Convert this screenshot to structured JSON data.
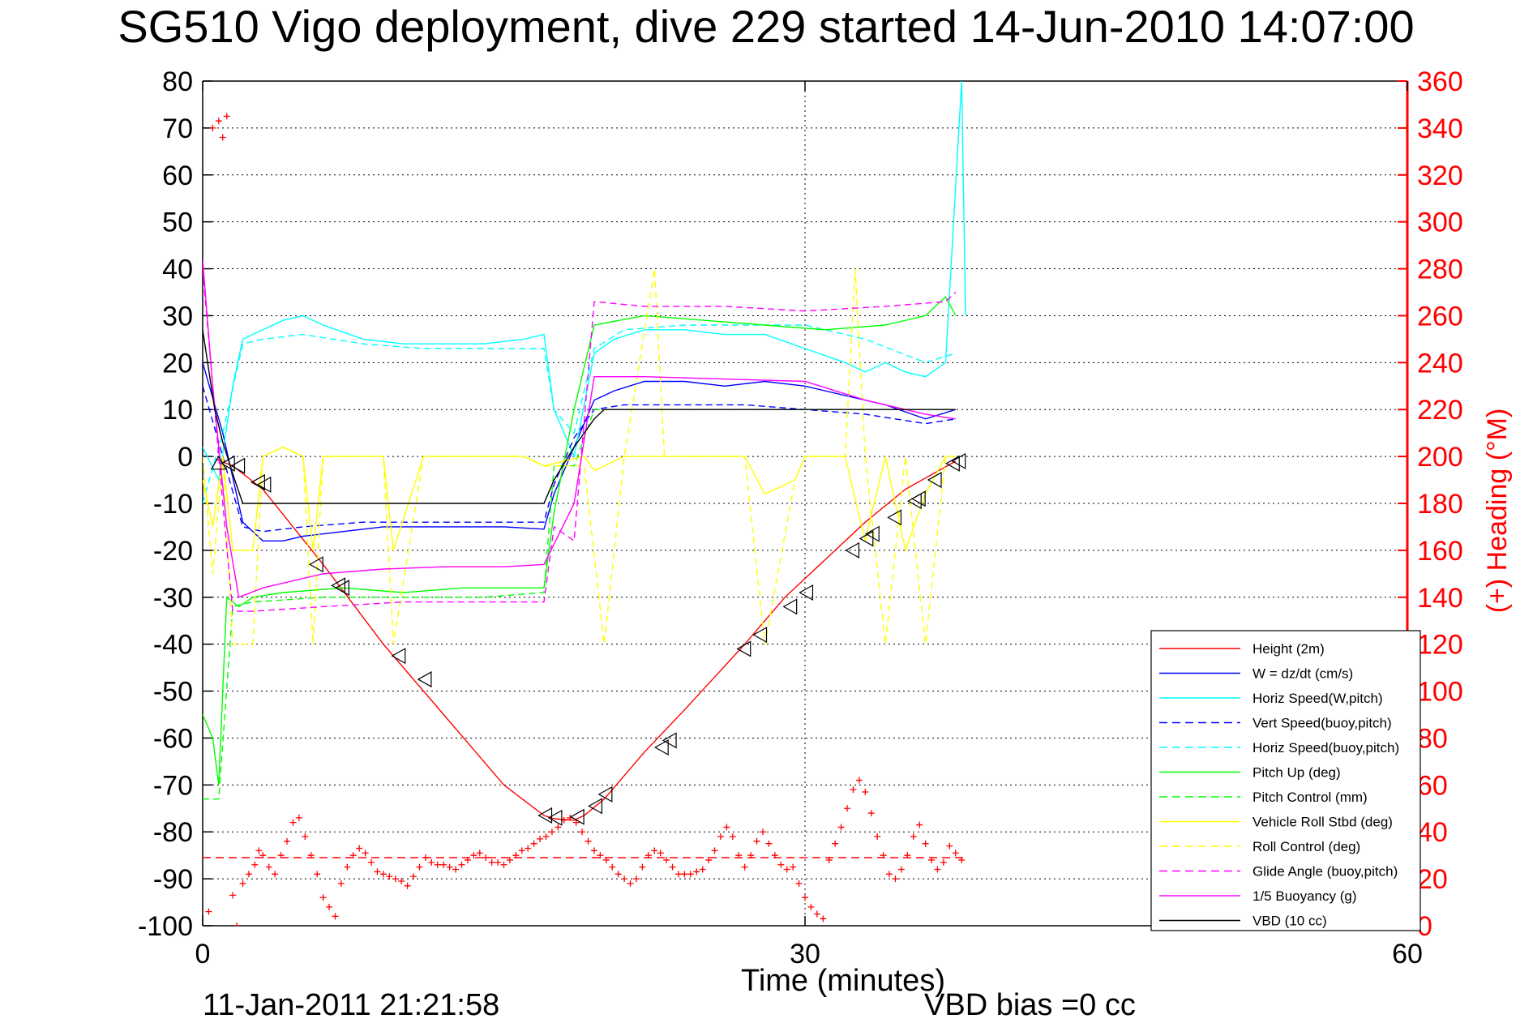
{
  "chart_data": {
    "type": "line",
    "title": "SG510 Vigo deployment, dive 229 started 14-Jun-2010 14:07:00",
    "xlabel": "Time (minutes)",
    "ylabel": "",
    "y2label": "(+) Heading (°M)",
    "xlim": [
      0,
      60
    ],
    "ylim": [
      -100,
      80
    ],
    "y2lim": [
      0,
      360
    ],
    "x_ticks": [
      "0",
      "30",
      "60"
    ],
    "y_ticks": [
      "80",
      "70",
      "60",
      "50",
      "40",
      "30",
      "20",
      "10",
      "0",
      "-10",
      "-20",
      "-30",
      "-40",
      "-50",
      "-60",
      "-70",
      "-80",
      "-90",
      "-100"
    ],
    "y2_ticks": [
      "360",
      "340",
      "320",
      "300",
      "280",
      "260",
      "240",
      "220",
      "200",
      "180",
      "160",
      "140",
      "120",
      "100",
      "80",
      "60",
      "40",
      "20",
      "0"
    ],
    "grid": "dotted at x=30",
    "legend_position": "bottom-right",
    "colors": {
      "height": "#ff0000",
      "w": "#0000ff",
      "horiz_speed_w": "#00ffff",
      "vert_speed_buoy": "#0000ff",
      "horiz_speed_buoy": "#00ffff",
      "pitch_up": "#00ff00",
      "pitch_control": "#00ff00",
      "roll": "#ffff00",
      "roll_control": "#ffff00",
      "glide_angle": "#ff00ff",
      "buoyancy": "#ff00ff",
      "vbd": "#000000",
      "heading": "#ff0000"
    },
    "series": [
      {
        "name": "Height (2m)",
        "key": "height",
        "style": "solid",
        "x": [
          0.6,
          1.5,
          3,
          6,
          9,
          12,
          15,
          17,
          17.5,
          18.5,
          19,
          20,
          22,
          24,
          27,
          29,
          31,
          33,
          35,
          37.5
        ],
        "y": [
          -0.5,
          -2,
          -7,
          -23,
          -40,
          -55,
          -70,
          -76.5,
          -77.2,
          -77.5,
          -76.5,
          -73,
          -63,
          -54,
          -40,
          -30,
          -22,
          -14,
          -7,
          -1
        ]
      },
      {
        "name": "W = dz/dt (cm/s)",
        "key": "w",
        "style": "solid",
        "x": [
          0,
          1,
          2,
          3,
          4,
          5,
          7,
          9,
          11,
          13,
          15,
          17,
          17.5,
          18.5,
          19.5,
          20.5,
          22,
          24,
          26,
          28,
          30,
          32,
          34,
          36,
          37.5
        ],
        "y": [
          20,
          5,
          -14,
          -18,
          -18,
          -17,
          -16,
          -15,
          -15,
          -15,
          -15,
          -15.5,
          -8,
          2,
          12,
          14,
          16,
          16,
          15,
          16,
          15,
          13,
          11,
          8,
          10
        ]
      },
      {
        "name": "Horiz Speed(W,pitch)",
        "key": "horiz_speed_w",
        "style": "solid",
        "x": [
          0,
          0.8,
          1.5,
          2,
          3,
          4,
          5,
          6,
          8,
          10,
          12,
          14,
          16,
          17,
          17.5,
          18.5,
          19.5,
          20.5,
          22,
          24,
          26,
          28,
          30,
          32,
          33,
          34,
          35,
          36,
          37,
          37.4,
          37.8,
          38
        ],
        "y": [
          2,
          -5,
          15,
          25,
          27,
          29,
          30,
          28,
          25,
          24,
          24,
          24,
          25,
          26,
          10,
          0,
          22,
          25,
          27,
          27,
          26,
          26,
          23,
          20,
          18,
          20,
          18,
          17,
          20,
          50,
          80,
          30
        ]
      },
      {
        "name": "Vert Speed(buoy,pitch)",
        "key": "vert_speed_buoy",
        "style": "dashed",
        "x": [
          0,
          1,
          2,
          3,
          5,
          8,
          11,
          14,
          17,
          17.5,
          18.5,
          19.5,
          21,
          24,
          27,
          30,
          33,
          36,
          37.5
        ],
        "y": [
          15,
          0,
          -15,
          -16,
          -15,
          -14,
          -14,
          -14,
          -14,
          -6,
          4,
          10,
          11,
          11,
          11,
          10,
          9,
          7,
          8
        ]
      },
      {
        "name": "Horiz Speed(buoy,pitch)",
        "key": "horiz_speed_buoy",
        "style": "dashed",
        "x": [
          0,
          1,
          2,
          3,
          5,
          8,
          11,
          14,
          17,
          17.5,
          18.5,
          19.5,
          21,
          24,
          27,
          30,
          33,
          36,
          37.5
        ],
        "y": [
          -10,
          5,
          24,
          25,
          26,
          24,
          23,
          23,
          23,
          10,
          5,
          23,
          27,
          28,
          28,
          28,
          25,
          20,
          22
        ]
      },
      {
        "name": "Pitch Up (deg)",
        "key": "pitch_up",
        "style": "solid",
        "x": [
          0,
          0.5,
          0.8,
          1.2,
          1.8,
          2.5,
          4,
          7,
          10,
          13,
          16,
          17,
          17.5,
          18.5,
          19.5,
          22,
          25,
          28,
          31,
          34,
          36,
          37,
          37.5
        ],
        "y": [
          -55,
          -60,
          -70,
          -30,
          -32,
          -30,
          -29,
          -28,
          -29,
          -28,
          -28,
          -28,
          -12,
          10,
          28,
          30,
          29,
          28,
          27,
          28,
          30,
          34,
          30
        ]
      },
      {
        "name": "Pitch Control (mm)",
        "key": "pitch_control",
        "style": "dashed",
        "x": [
          0,
          0.8,
          1.5,
          2.5,
          6,
          10,
          14,
          17,
          17.5,
          18.5,
          19.5,
          22,
          26,
          30,
          34,
          37,
          37.5
        ],
        "y": [
          -73,
          -73,
          -32,
          -31,
          -30,
          -30,
          -30,
          -29,
          -2,
          -2,
          10,
          10,
          10,
          10,
          10,
          10,
          10
        ]
      },
      {
        "name": "Vehicle Roll Stbd (deg)",
        "key": "roll",
        "style": "solid",
        "x": [
          0,
          0.5,
          1,
          1.5,
          2.5,
          3,
          4,
          5,
          5.5,
          6,
          8,
          9,
          9.5,
          11,
          12,
          14,
          16,
          17,
          19,
          19.5,
          21,
          22,
          23,
          25,
          27,
          28,
          29.5,
          30,
          32,
          33,
          34,
          35,
          36,
          37,
          37.5
        ],
        "y": [
          -5,
          -15,
          0,
          -20,
          -20,
          0,
          2,
          0,
          -20,
          0,
          0,
          0,
          -20,
          0,
          0,
          0,
          0,
          -2,
          0,
          -3,
          0,
          0,
          0,
          0,
          0,
          -8,
          -5,
          0,
          0,
          -18,
          0,
          -20,
          -8,
          0,
          0
        ]
      },
      {
        "name": "Roll Control (deg)",
        "key": "roll_control",
        "style": "dashed",
        "x": [
          0,
          0.5,
          1,
          1.5,
          2.5,
          3,
          4,
          5,
          5.5,
          6,
          8,
          9,
          9.5,
          11,
          12,
          14,
          16,
          17,
          19,
          20,
          21,
          22.5,
          23,
          25,
          27,
          28,
          29.5,
          30,
          32,
          32.5,
          33,
          34,
          35,
          36,
          37,
          37.5
        ],
        "y": [
          0,
          -25,
          0,
          -40,
          -40,
          0,
          2,
          0,
          -40,
          0,
          0,
          0,
          -40,
          0,
          0,
          0,
          0,
          -2,
          -2,
          -40,
          0,
          40,
          0,
          0,
          0,
          -40,
          -5,
          0,
          0,
          40,
          0,
          -40,
          0,
          -40,
          0,
          0
        ]
      },
      {
        "name": "Glide Angle (buoy,pitch)",
        "key": "glide_angle",
        "style": "dashed",
        "x": [
          0,
          1,
          1.5,
          2.5,
          6,
          10,
          14,
          17,
          17.5,
          18.5,
          19.5,
          22,
          26,
          30,
          34,
          37,
          37.5
        ],
        "y": [
          40,
          -10,
          -33,
          -33,
          -32,
          -31,
          -31,
          -31,
          -15,
          -18,
          33,
          32,
          32,
          31,
          32,
          33,
          35
        ]
      },
      {
        "name": "1/5 Buoyancy (g)",
        "key": "buoyancy",
        "style": "solid",
        "x": [
          0,
          0.5,
          1.2,
          1.8,
          3,
          6,
          9,
          12,
          15,
          17,
          18.5,
          19.5,
          22,
          26,
          30,
          33,
          36,
          37.5
        ],
        "y": [
          42,
          15,
          -15,
          -30,
          -28,
          -25,
          -24,
          -23.5,
          -23.5,
          -23,
          -10,
          17,
          17,
          16.5,
          16,
          12,
          9,
          8
        ]
      },
      {
        "name": "VBD (10 cc)",
        "key": "vbd",
        "style": "solid",
        "x": [
          0,
          0.6,
          1,
          1.6,
          2,
          5,
          10,
          15,
          17,
          17.5,
          18.5,
          19.5,
          20,
          22,
          25,
          30,
          35,
          37.5
        ],
        "y": [
          27,
          10,
          3,
          -5,
          -10,
          -10,
          -10,
          -10,
          -10,
          -5,
          2,
          8,
          10,
          10,
          10,
          10,
          10,
          10
        ]
      }
    ],
    "heading_mean": 29,
    "heading": {
      "name": "Heading",
      "x": [
        0.3,
        0.5,
        0.8,
        1.0,
        1.2,
        1.5,
        1.7,
        2.0,
        2.3,
        2.6,
        2.8,
        3.0,
        3.3,
        3.6,
        3.9,
        4.2,
        4.5,
        4.8,
        5.1,
        5.4,
        5.7,
        6.0,
        6.3,
        6.6,
        6.9,
        7.2,
        7.5,
        7.8,
        8.1,
        8.4,
        8.7,
        9.0,
        9.3,
        9.6,
        9.9,
        10.2,
        10.5,
        10.8,
        11.1,
        11.4,
        11.7,
        12.0,
        12.3,
        12.6,
        12.9,
        13.2,
        13.5,
        13.8,
        14.1,
        14.4,
        14.7,
        15.0,
        15.3,
        15.6,
        15.9,
        16.2,
        16.5,
        16.8,
        17.1,
        17.4,
        17.7,
        18.0,
        18.3,
        18.6,
        18.9,
        19.2,
        19.5,
        19.8,
        20.1,
        20.4,
        20.7,
        21.0,
        21.3,
        21.6,
        21.9,
        22.2,
        22.5,
        22.8,
        23.1,
        23.4,
        23.7,
        24.0,
        24.3,
        24.6,
        24.9,
        25.2,
        25.5,
        25.8,
        26.1,
        26.4,
        26.7,
        27.0,
        27.3,
        27.6,
        27.9,
        28.2,
        28.5,
        28.8,
        29.1,
        29.4,
        29.7,
        30.0,
        30.3,
        30.6,
        30.9,
        31.2,
        31.5,
        31.8,
        32.1,
        32.4,
        32.7,
        33.0,
        33.3,
        33.6,
        33.9,
        34.2,
        34.5,
        34.8,
        35.1,
        35.4,
        35.7,
        36.0,
        36.3,
        36.6,
        36.9,
        37.2,
        37.5,
        37.8
      ],
      "y": [
        6,
        340,
        343,
        336,
        345,
        13,
        0,
        18,
        22,
        26,
        32,
        30,
        25,
        22,
        30,
        36,
        44,
        46,
        38,
        30,
        22,
        12,
        8,
        4,
        18,
        25,
        30,
        33,
        31,
        27,
        23,
        22,
        21,
        20,
        19,
        17,
        21,
        25,
        29,
        27,
        26,
        26,
        25,
        24,
        26,
        28,
        30,
        31,
        29,
        27,
        27,
        26,
        28,
        30,
        32,
        33,
        35,
        37,
        38,
        40,
        42,
        45,
        46,
        44,
        40,
        36,
        32,
        30,
        28,
        25,
        22,
        20,
        18,
        20,
        25,
        30,
        32,
        31,
        28,
        25,
        22,
        22,
        22,
        23,
        24,
        28,
        32,
        38,
        42,
        38,
        30,
        25,
        30,
        36,
        40,
        35,
        30,
        26,
        24,
        25,
        18,
        12,
        8,
        5,
        3,
        28,
        35,
        42,
        50,
        58,
        62,
        57,
        48,
        38,
        30,
        22,
        20,
        24,
        30,
        38,
        43,
        35,
        28,
        24,
        27,
        34,
        31,
        28
      ]
    },
    "height_markers": {
      "x": [
        0.8,
        1.3,
        1.8,
        2.8,
        3.1,
        5.7,
        6.8,
        7.0,
        9.8,
        11.1,
        17.1,
        17.6,
        18.7,
        19.6,
        20.1,
        22.9,
        23.3,
        27.0,
        27.8,
        29.3,
        30.1,
        32.4,
        33.1,
        33.4,
        34.5,
        35.5,
        35.7,
        36.5,
        37.4,
        37.7
      ],
      "y": [
        -1.5,
        -1.5,
        -2,
        -5.5,
        -6,
        -23,
        -27.5,
        -28,
        -42.5,
        -47.5,
        -76.5,
        -77,
        -76.8,
        -74.5,
        -72,
        -62,
        -60.5,
        -41,
        -38,
        -32,
        -29,
        -20,
        -17.5,
        -16.5,
        -13,
        -9.5,
        -9,
        -5,
        -1.5,
        -1
      ]
    },
    "marker_types": [
      "up",
      "left",
      "left",
      "left",
      "left",
      "left",
      "left",
      "left",
      "left",
      "left",
      "left",
      "left",
      "left",
      "left",
      "left",
      "left",
      "left",
      "left",
      "left",
      "left",
      "left",
      "left",
      "left",
      "left",
      "left",
      "left",
      "left",
      "left",
      "left",
      "left"
    ]
  },
  "footer": {
    "timestamp": "11-Jan-2011 21:21:58",
    "vbd_bias": "VBD bias =0 cc"
  }
}
